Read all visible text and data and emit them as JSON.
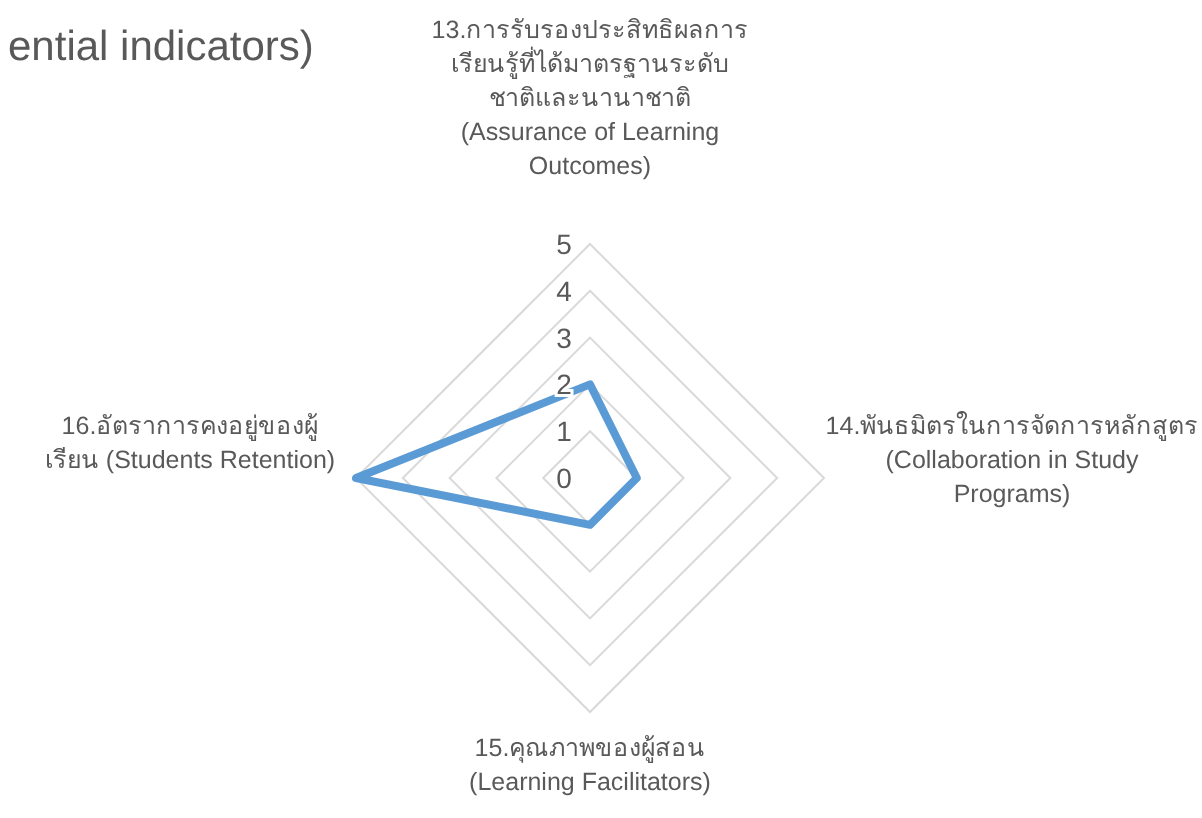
{
  "chart_data": {
    "type": "radar",
    "title": "ential indicators)",
    "categories": [
      "13.การรับรองประสิทธิผลการเรียนรู้ที่ได้มาตรฐานระดับชาติและนานาชาติ (Assurance of Learning Outcomes)",
      "14.พันธมิตรในการจัดการหลักสูตร (Collaboration in Study Programs)",
      "15.คุณภาพของผู้สอน (Learning Facilitators)",
      "16.อัตราการคงอยู่ของผู้เรียน (Students Retention)"
    ],
    "series": [
      {
        "color": "#5b9bd5",
        "values": [
          2,
          1,
          1,
          5
        ]
      }
    ],
    "ylim": [
      0,
      5
    ],
    "yticks": [
      0,
      1,
      2,
      3,
      4,
      5
    ],
    "grid": true,
    "marker": "none",
    "line_style": "solid"
  }
}
